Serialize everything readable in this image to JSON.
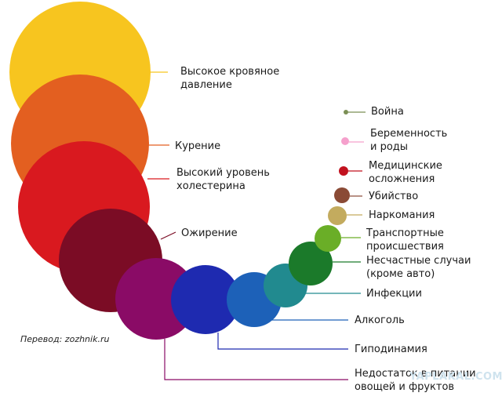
{
  "credit": "Перевод: zozhnik.ru",
  "watermark": "YAPLAKAL.COM",
  "items": [
    {
      "id": "high-blood-pressure",
      "lines": [
        "Высокое кровяное",
        "давление"
      ],
      "color": "#f7c51f"
    },
    {
      "id": "smoking",
      "lines": [
        "Курение"
      ],
      "color": "#e35f20"
    },
    {
      "id": "high-cholesterol",
      "lines": [
        "Высокий уровень",
        "холестерина"
      ],
      "color": "#d9191f"
    },
    {
      "id": "obesity",
      "lines": [
        "Ожирение"
      ],
      "color": "#7b0c25"
    },
    {
      "id": "poor-diet",
      "lines": [
        "Недостаток в питании",
        "овощей и фруктов"
      ],
      "color": "#8a0b66"
    },
    {
      "id": "physical-inactivity",
      "lines": [
        "Гиподинамия"
      ],
      "color": "#1e2ab0"
    },
    {
      "id": "alcohol",
      "lines": [
        "Алкоголь"
      ],
      "color": "#1d61b8"
    },
    {
      "id": "infections",
      "lines": [
        "Инфекции"
      ],
      "color": "#218a8f"
    },
    {
      "id": "accidents",
      "lines": [
        "Несчастные случаи",
        "(кроме авто)"
      ],
      "color": "#1b7a2a"
    },
    {
      "id": "traffic-accidents",
      "lines": [
        "Транспортные",
        "происшествия"
      ],
      "color": "#6aae27"
    },
    {
      "id": "drugs",
      "lines": [
        "Наркомания"
      ],
      "color": "#c3ab5e"
    },
    {
      "id": "murder",
      "lines": [
        "Убийство"
      ],
      "color": "#8a4a35"
    },
    {
      "id": "medical-complications",
      "lines": [
        "Медицинские",
        "осложнения"
      ],
      "color": "#c2121f"
    },
    {
      "id": "pregnancy",
      "lines": [
        "Беременность",
        "и роды"
      ],
      "color": "#f5a0cc"
    },
    {
      "id": "war",
      "lines": [
        "Война"
      ],
      "color": "#7b8f55"
    }
  ]
}
